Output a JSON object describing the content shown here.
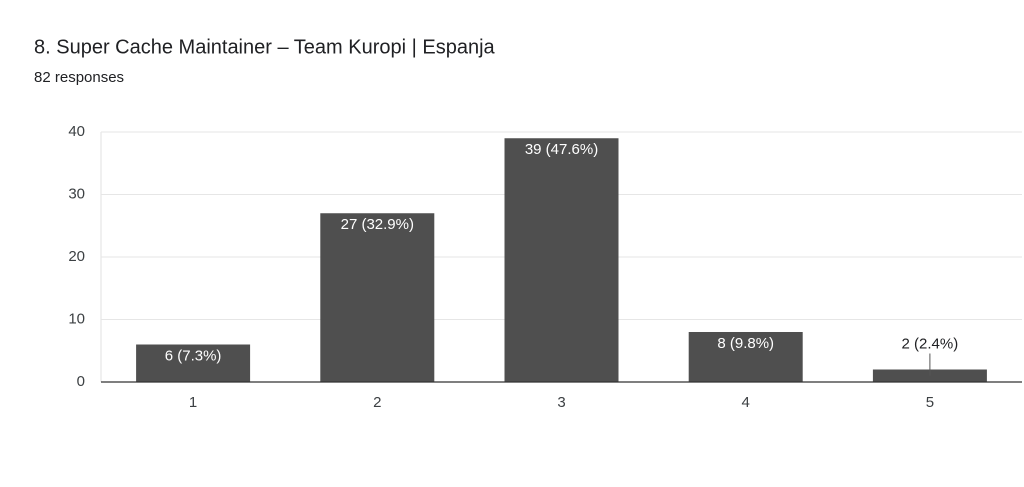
{
  "chart_data": {
    "type": "bar",
    "title": "8. Super Cache Maintainer – Team Kuropi | Espanja",
    "subtitle": "82 responses",
    "categories": [
      "1",
      "2",
      "3",
      "4",
      "5"
    ],
    "values": [
      6,
      27,
      39,
      8,
      2
    ],
    "value_labels": [
      "6 (7.3%)",
      "27 (32.9%)",
      "39 (47.6%)",
      "8 (9.8%)",
      "2 (2.4%)"
    ],
    "color": "#4f4f4f",
    "ylim": [
      0,
      40
    ],
    "yticks": [
      0,
      10,
      20,
      30,
      40
    ],
    "grid": true
  }
}
